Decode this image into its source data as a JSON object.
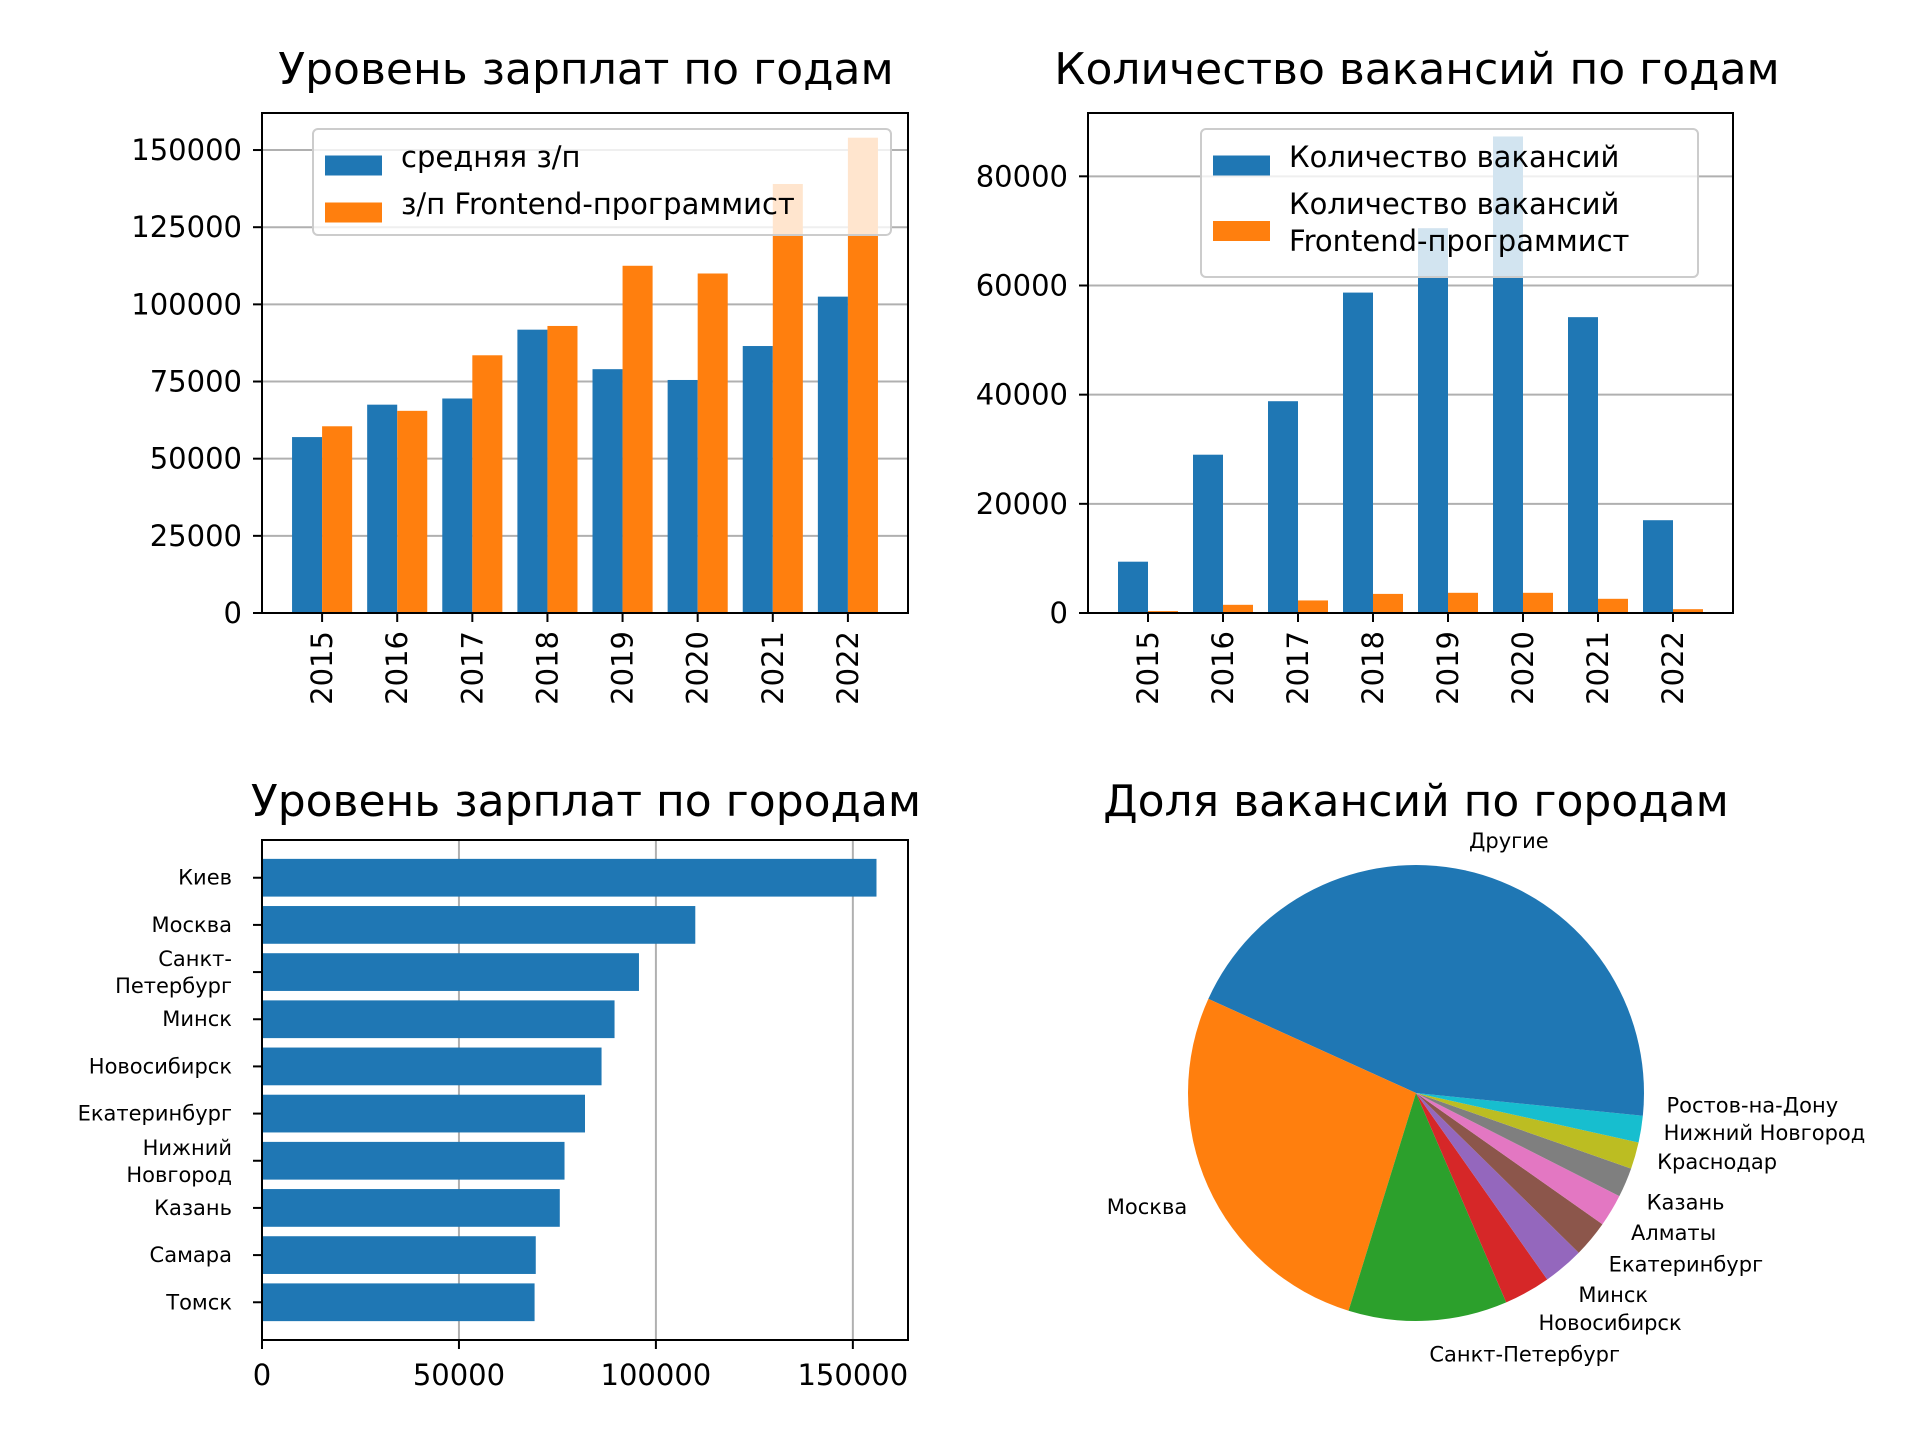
{
  "chart_data": [
    {
      "type": "bar",
      "title": "Уровень зарплат по годам",
      "categories": [
        "2015",
        "2016",
        "2017",
        "2018",
        "2019",
        "2020",
        "2021",
        "2022"
      ],
      "series": [
        {
          "name": "средняя з/п",
          "color": "#1f77b4",
          "values": [
            57000,
            67500,
            69500,
            91800,
            79000,
            75500,
            86500,
            102500
          ]
        },
        {
          "name": "з/п Frontend-программист",
          "color": "#ff7f0e",
          "values": [
            60500,
            65500,
            83500,
            93000,
            112500,
            110000,
            139000,
            154000
          ]
        }
      ],
      "ylim": [
        0,
        162000
      ],
      "yticks": [
        0,
        25000,
        50000,
        75000,
        100000,
        125000,
        150000
      ],
      "ytick_labels": [
        "0",
        "25000",
        "50000",
        "75000",
        "100000",
        "125000",
        "150000"
      ],
      "grid": "y",
      "legend": "top-right"
    },
    {
      "type": "bar",
      "title": "Количество вакансий по годам",
      "categories": [
        "2015",
        "2016",
        "2017",
        "2018",
        "2019",
        "2020",
        "2021",
        "2022"
      ],
      "series": [
        {
          "name": "Количество вакансий",
          "color": "#1f77b4",
          "values": [
            9400,
            29000,
            38800,
            58700,
            70500,
            87300,
            54200,
            17000
          ]
        },
        {
          "name": "Количество вакансий\nFrontend-программист",
          "color": "#ff7f0e",
          "values": [
            350,
            1500,
            2300,
            3500,
            3700,
            3700,
            2600,
            700
          ]
        }
      ],
      "ylim": [
        0,
        91600
      ],
      "yticks": [
        0,
        20000,
        40000,
        60000,
        80000
      ],
      "ytick_labels": [
        "0",
        "20000",
        "40000",
        "60000",
        "80000"
      ],
      "grid": "y",
      "legend": "top-right"
    },
    {
      "type": "bar",
      "orientation": "horizontal",
      "title": "Уровень зарплат по городам",
      "categories": [
        "Киев",
        "Москва",
        "Санкт-\nПетербург",
        "Минск",
        "Новосибирск",
        "Екатеринбург",
        "Нижний\nНовгород",
        "Казань",
        "Самара",
        "Томск"
      ],
      "values": [
        156000,
        110000,
        95700,
        89500,
        86200,
        82000,
        76800,
        75600,
        69500,
        69200
      ],
      "color": "#1f77b4",
      "xlim": [
        0,
        164000
      ],
      "xticks": [
        0,
        50000,
        100000,
        150000
      ],
      "xtick_labels": [
        "0",
        "50000",
        "100000",
        "150000"
      ],
      "grid": "x"
    },
    {
      "type": "pie",
      "title": "Доля вакансий по городам",
      "labels": [
        "Другие",
        "Москва",
        "Санкт-Петербург",
        "Новосибирск",
        "Минск",
        "Екатеринбург",
        "Алматы",
        "Казань",
        "Краснодар",
        "Нижний Новгород",
        "Ростов-на-Дону"
      ],
      "values": [
        43.4,
        27.1,
        11.3,
        3.3,
        2.9,
        2.6,
        2.3,
        2.1,
        1.9,
        1.9,
        1.6
      ],
      "colors": [
        "#1f77b4",
        "#ff7f0e",
        "#2ca02c",
        "#d62728",
        "#9467bd",
        "#8c564b",
        "#e377c2",
        "#7f7f7f",
        "#bcbd22",
        "#17becf",
        "#1f77b4"
      ]
    }
  ]
}
